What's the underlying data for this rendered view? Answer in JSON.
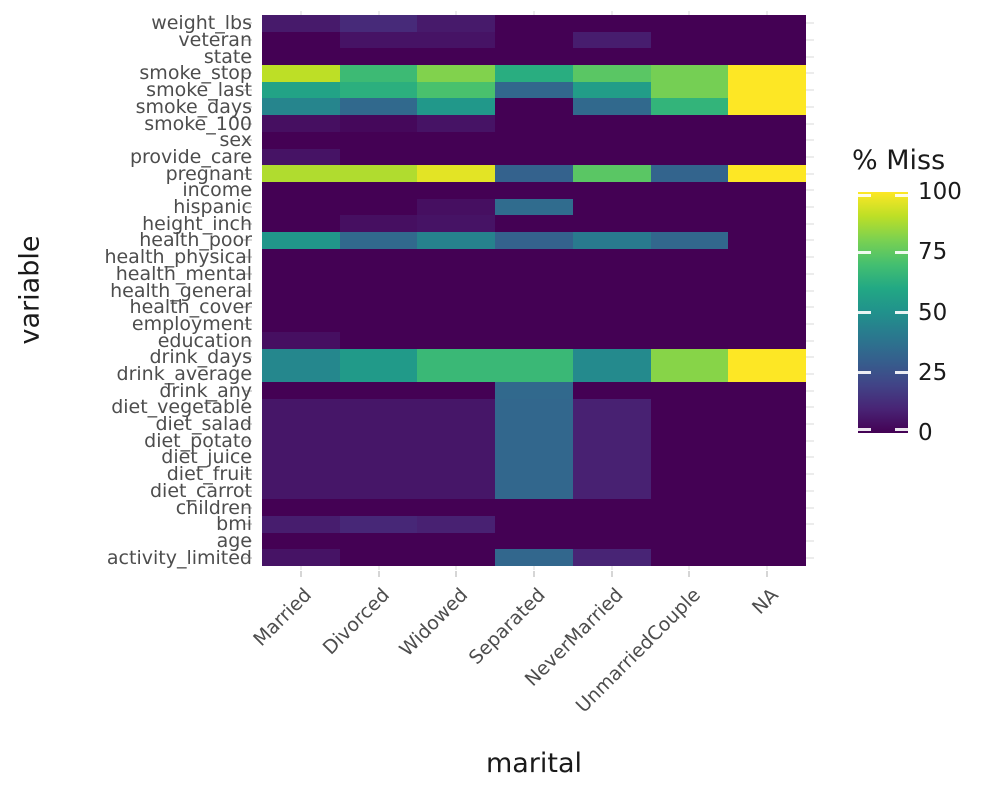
{
  "figure": {
    "x_axis_title": "marital",
    "y_axis_title": "variable",
    "legend_title": "% Miss"
  },
  "colors": {
    "background": "#ffffff",
    "tick_label_text": "#4d4d4d",
    "axis_title_text": "#1a1a1a",
    "tick_mark": "#d6d6d6",
    "gridline_stub": "#ececec",
    "colormap_low": "#440154",
    "colormap_mid": "#21918c",
    "colormap_high": "#fde725"
  },
  "chart_data": {
    "type": "heatmap",
    "title": "",
    "xlabel": "marital",
    "ylabel": "variable",
    "colormap": "viridis",
    "grid": true,
    "legend": {
      "title": "% Miss",
      "position": "right",
      "range": [
        0,
        100
      ],
      "ticks": [
        100,
        75,
        50,
        25,
        0
      ]
    },
    "columns": [
      "Married",
      "Divorced",
      "Widowed",
      "Separated",
      "NeverMarried",
      "UnmarriedCouple",
      "NA"
    ],
    "rows": [
      "weight_lbs",
      "veteran",
      "state",
      "smoke_stop",
      "smoke_last",
      "smoke_days",
      "smoke_100",
      "sex",
      "provide_care",
      "pregnant",
      "income",
      "hispanic",
      "height_inch",
      "health_poor",
      "health_physical",
      "health_mental",
      "health_general",
      "health_cover",
      "employment",
      "education",
      "drink_days",
      "drink_average",
      "drink_any",
      "diet_vegetable",
      "diet_salad",
      "diet_potato",
      "diet_juice",
      "diet_fruit",
      "diet_carrot",
      "children",
      "bmi",
      "age",
      "activity_limited"
    ],
    "values_percent_missing": [
      [
        7,
        12,
        7,
        0,
        0,
        0,
        0
      ],
      [
        0,
        5,
        5,
        0,
        8,
        0,
        0
      ],
      [
        0,
        0,
        0,
        0,
        0,
        0,
        0
      ],
      [
        90,
        68,
        81,
        62,
        74,
        79,
        100
      ],
      [
        58,
        63,
        71,
        33,
        55,
        79,
        100
      ],
      [
        45,
        34,
        53,
        0,
        34,
        65,
        100
      ],
      [
        4,
        2,
        5,
        0,
        0,
        0,
        0
      ],
      [
        0,
        0,
        0,
        0,
        0,
        0,
        0
      ],
      [
        5,
        0,
        0,
        0,
        0,
        0,
        0
      ],
      [
        88,
        88,
        96,
        31,
        74,
        32,
        100
      ],
      [
        0,
        0,
        0,
        0,
        0,
        0,
        0
      ],
      [
        0,
        0,
        4,
        35,
        0,
        0,
        0
      ],
      [
        0,
        4,
        5,
        0,
        0,
        0,
        0
      ],
      [
        52,
        34,
        44,
        31,
        41,
        33,
        0
      ],
      [
        0,
        0,
        0,
        0,
        0,
        0,
        0
      ],
      [
        0,
        0,
        0,
        0,
        0,
        0,
        0
      ],
      [
        0,
        0,
        0,
        0,
        0,
        0,
        0
      ],
      [
        0,
        0,
        0,
        0,
        0,
        0,
        0
      ],
      [
        0,
        0,
        0,
        0,
        0,
        0,
        0
      ],
      [
        4,
        0,
        0,
        0,
        0,
        0,
        0
      ],
      [
        46,
        54,
        67,
        67,
        47,
        82,
        100
      ],
      [
        46,
        54,
        67,
        67,
        47,
        82,
        100
      ],
      [
        0,
        0,
        0,
        34,
        0,
        0,
        0
      ],
      [
        6,
        6,
        6,
        33,
        9,
        0,
        0
      ],
      [
        6,
        6,
        6,
        33,
        9,
        0,
        0
      ],
      [
        6,
        6,
        6,
        33,
        9,
        0,
        0
      ],
      [
        6,
        6,
        6,
        33,
        9,
        0,
        0
      ],
      [
        6,
        6,
        6,
        33,
        9,
        0,
        0
      ],
      [
        6,
        6,
        6,
        33,
        9,
        0,
        0
      ],
      [
        0,
        0,
        0,
        0,
        0,
        0,
        0
      ],
      [
        8,
        11,
        9,
        0,
        0,
        0,
        0
      ],
      [
        0,
        0,
        0,
        0,
        0,
        0,
        0
      ],
      [
        5,
        0,
        0,
        33,
        10,
        0,
        0
      ]
    ]
  }
}
